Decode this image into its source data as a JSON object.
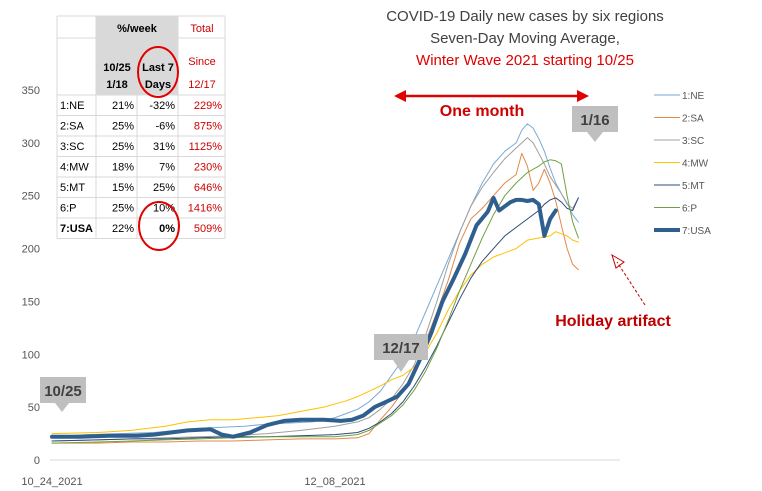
{
  "chart_data": {
    "type": "line",
    "title_lines": [
      "COVID-19 Daily new cases by six regions",
      "Seven-Day Moving Average,",
      "Winter Wave 2021 starting 10/25"
    ],
    "colors": {
      "title": "#404040",
      "title_accent": "#e00000",
      "red": "#d00000"
    },
    "x_tick_labels": [
      "10_24_2021",
      "12_08_2021"
    ],
    "y_ticks": [
      0,
      50,
      100,
      150,
      200,
      250,
      300,
      350
    ],
    "ylim": [
      0,
      350
    ],
    "xlim": [
      0,
      100
    ],
    "grid": false,
    "legend_position": "right",
    "series": [
      {
        "name": "1:NE",
        "color": "#7aaad4",
        "width": 1,
        "points": [
          [
            0,
            22
          ],
          [
            6,
            24
          ],
          [
            12,
            25
          ],
          [
            18,
            26
          ],
          [
            22,
            28
          ],
          [
            26,
            30
          ],
          [
            30,
            31
          ],
          [
            34,
            32
          ],
          [
            38,
            34
          ],
          [
            42,
            35
          ],
          [
            46,
            36
          ],
          [
            50,
            40
          ],
          [
            52,
            44
          ],
          [
            54,
            48
          ],
          [
            56,
            55
          ],
          [
            58,
            65
          ],
          [
            60,
            80
          ],
          [
            62,
            95
          ],
          [
            64,
            115
          ],
          [
            66,
            140
          ],
          [
            68,
            165
          ],
          [
            70,
            190
          ],
          [
            72,
            215
          ],
          [
            74,
            240
          ],
          [
            76,
            262
          ],
          [
            78,
            280
          ],
          [
            80,
            292
          ],
          [
            82,
            300
          ],
          [
            83,
            312
          ],
          [
            84,
            318
          ],
          [
            85,
            314
          ],
          [
            86,
            304
          ],
          [
            87,
            292
          ],
          [
            88,
            276
          ],
          [
            89,
            262
          ],
          [
            90,
            252
          ],
          [
            91,
            243
          ],
          [
            92,
            232
          ],
          [
            93,
            225
          ]
        ]
      },
      {
        "name": "2:SA",
        "color": "#e08a4a",
        "width": 1,
        "points": [
          [
            0,
            16
          ],
          [
            8,
            16
          ],
          [
            14,
            17
          ],
          [
            20,
            17
          ],
          [
            26,
            18
          ],
          [
            32,
            18
          ],
          [
            38,
            19
          ],
          [
            44,
            20
          ],
          [
            50,
            20
          ],
          [
            54,
            21
          ],
          [
            56,
            25
          ],
          [
            58,
            38
          ],
          [
            60,
            50
          ],
          [
            62,
            65
          ],
          [
            64,
            85
          ],
          [
            66,
            112
          ],
          [
            68,
            140
          ],
          [
            70,
            170
          ],
          [
            72,
            205
          ],
          [
            74,
            228
          ],
          [
            76,
            238
          ],
          [
            78,
            250
          ],
          [
            80,
            262
          ],
          [
            82,
            270
          ],
          [
            83,
            290
          ],
          [
            84,
            278
          ],
          [
            85,
            255
          ],
          [
            86,
            262
          ],
          [
            87,
            275
          ],
          [
            88,
            262
          ],
          [
            89,
            245
          ],
          [
            90,
            222
          ],
          [
            91,
            200
          ],
          [
            92,
            185
          ],
          [
            93,
            180
          ]
        ]
      },
      {
        "name": "3:SC",
        "color": "#a0a0a0",
        "width": 1,
        "points": [
          [
            0,
            18
          ],
          [
            8,
            19
          ],
          [
            14,
            20
          ],
          [
            20,
            21
          ],
          [
            26,
            22
          ],
          [
            32,
            23
          ],
          [
            38,
            25
          ],
          [
            44,
            28
          ],
          [
            50,
            32
          ],
          [
            54,
            36
          ],
          [
            56,
            40
          ],
          [
            58,
            48
          ],
          [
            60,
            58
          ],
          [
            62,
            72
          ],
          [
            64,
            90
          ],
          [
            66,
            118
          ],
          [
            68,
            150
          ],
          [
            70,
            185
          ],
          [
            72,
            215
          ],
          [
            74,
            240
          ],
          [
            76,
            258
          ],
          [
            78,
            272
          ],
          [
            80,
            285
          ],
          [
            82,
            295
          ],
          [
            83,
            300
          ],
          [
            84,
            305
          ],
          [
            85,
            300
          ],
          [
            86,
            290
          ],
          [
            87,
            280
          ],
          [
            88,
            268
          ],
          [
            89,
            260
          ],
          [
            90,
            252
          ],
          [
            91,
            242
          ],
          [
            92,
            238
          ],
          [
            93,
            248
          ]
        ]
      },
      {
        "name": "4:MW",
        "color": "#ffc000",
        "width": 1,
        "points": [
          [
            0,
            25
          ],
          [
            8,
            26
          ],
          [
            14,
            28
          ],
          [
            20,
            32
          ],
          [
            24,
            36
          ],
          [
            28,
            38
          ],
          [
            32,
            38
          ],
          [
            36,
            40
          ],
          [
            40,
            42
          ],
          [
            44,
            46
          ],
          [
            48,
            50
          ],
          [
            52,
            56
          ],
          [
            54,
            60
          ],
          [
            56,
            65
          ],
          [
            58,
            70
          ],
          [
            60,
            76
          ],
          [
            62,
            80
          ],
          [
            64,
            88
          ],
          [
            66,
            102
          ],
          [
            68,
            120
          ],
          [
            70,
            142
          ],
          [
            72,
            160
          ],
          [
            74,
            175
          ],
          [
            76,
            185
          ],
          [
            78,
            192
          ],
          [
            80,
            196
          ],
          [
            82,
            200
          ],
          [
            84,
            208
          ],
          [
            86,
            210
          ],
          [
            88,
            212
          ],
          [
            89,
            216
          ],
          [
            90,
            214
          ],
          [
            91,
            212
          ],
          [
            92,
            208
          ],
          [
            93,
            206
          ]
        ]
      },
      {
        "name": "5:MT",
        "color": "#2e4b7a",
        "width": 1,
        "points": [
          [
            0,
            18
          ],
          [
            8,
            19
          ],
          [
            14,
            20
          ],
          [
            20,
            20
          ],
          [
            26,
            21
          ],
          [
            32,
            22
          ],
          [
            38,
            22
          ],
          [
            44,
            23
          ],
          [
            50,
            24
          ],
          [
            54,
            26
          ],
          [
            56,
            30
          ],
          [
            58,
            36
          ],
          [
            60,
            44
          ],
          [
            62,
            55
          ],
          [
            64,
            70
          ],
          [
            66,
            88
          ],
          [
            68,
            108
          ],
          [
            70,
            130
          ],
          [
            72,
            152
          ],
          [
            74,
            172
          ],
          [
            76,
            188
          ],
          [
            78,
            200
          ],
          [
            80,
            212
          ],
          [
            82,
            220
          ],
          [
            84,
            228
          ],
          [
            86,
            236
          ],
          [
            87,
            242
          ],
          [
            88,
            246
          ],
          [
            89,
            248
          ],
          [
            90,
            244
          ],
          [
            91,
            238
          ],
          [
            92,
            236
          ],
          [
            93,
            248
          ]
        ]
      },
      {
        "name": "6:P",
        "color": "#70a040",
        "width": 1,
        "points": [
          [
            0,
            16
          ],
          [
            8,
            17
          ],
          [
            14,
            18
          ],
          [
            20,
            19
          ],
          [
            26,
            20
          ],
          [
            32,
            21
          ],
          [
            38,
            22
          ],
          [
            44,
            22
          ],
          [
            50,
            22
          ],
          [
            54,
            24
          ],
          [
            56,
            28
          ],
          [
            58,
            35
          ],
          [
            60,
            42
          ],
          [
            62,
            52
          ],
          [
            64,
            66
          ],
          [
            66,
            84
          ],
          [
            68,
            106
          ],
          [
            70,
            132
          ],
          [
            72,
            160
          ],
          [
            74,
            185
          ],
          [
            76,
            210
          ],
          [
            78,
            232
          ],
          [
            80,
            250
          ],
          [
            82,
            262
          ],
          [
            84,
            272
          ],
          [
            86,
            278
          ],
          [
            87,
            282
          ],
          [
            88,
            284
          ],
          [
            89,
            283
          ],
          [
            90,
            280
          ],
          [
            91,
            250
          ],
          [
            92,
            225
          ],
          [
            93,
            210
          ]
        ]
      },
      {
        "name": "7:USA",
        "color": "#2e5f8f",
        "width": 4,
        "points": [
          [
            0,
            22
          ],
          [
            5,
            22
          ],
          [
            10,
            23
          ],
          [
            15,
            23
          ],
          [
            18,
            24
          ],
          [
            21,
            26
          ],
          [
            24,
            28
          ],
          [
            28,
            29
          ],
          [
            30,
            24
          ],
          [
            32,
            22
          ],
          [
            35,
            26
          ],
          [
            38,
            33
          ],
          [
            41,
            37
          ],
          [
            44,
            38
          ],
          [
            48,
            38
          ],
          [
            51,
            37
          ],
          [
            53,
            38
          ],
          [
            55,
            42
          ],
          [
            57,
            50
          ],
          [
            59,
            55
          ],
          [
            61,
            60
          ],
          [
            63,
            72
          ],
          [
            65,
            95
          ],
          [
            67,
            120
          ],
          [
            69,
            150
          ],
          [
            71,
            172
          ],
          [
            73,
            195
          ],
          [
            75,
            222
          ],
          [
            77,
            235
          ],
          [
            78,
            248
          ],
          [
            79,
            236
          ],
          [
            80,
            240
          ],
          [
            81,
            244
          ],
          [
            82,
            246
          ],
          [
            83,
            246
          ],
          [
            84,
            245
          ],
          [
            85,
            246
          ],
          [
            86,
            242
          ],
          [
            87,
            212
          ],
          [
            88,
            228
          ],
          [
            89,
            236
          ]
        ]
      }
    ],
    "annotations": {
      "one_month": "One month",
      "date_1_16": "1/16",
      "date_12_17": "12/17",
      "date_10_25": "10/25",
      "holiday": "Holiday artifact"
    },
    "table": {
      "header_week": "%/week",
      "header_total": "Total",
      "header_col1": "10/25 - 1/18",
      "header_col1_a": "10/25",
      "header_col1_b": "1/18",
      "header_col2_a": "Last 7",
      "header_col2_b": "Days",
      "header_col3_a": "Since",
      "header_col3_b": "12/17",
      "rows": [
        {
          "region": "1:NE",
          "c1": "21%",
          "c2": "-32%",
          "c3": "229%"
        },
        {
          "region": "2:SA",
          "c1": "25%",
          "c2": "-6%",
          "c3": "875%"
        },
        {
          "region": "3:SC",
          "c1": "25%",
          "c2": "31%",
          "c3": "1125%"
        },
        {
          "region": "4:MW",
          "c1": "18%",
          "c2": "7%",
          "c3": "230%"
        },
        {
          "region": "5:MT",
          "c1": "15%",
          "c2": "25%",
          "c3": "646%"
        },
        {
          "region": "6:P",
          "c1": "25%",
          "c2": "10%",
          "c3": "1416%"
        },
        {
          "region": "7:USA",
          "c1": "22%",
          "c2": "0%",
          "c3": "509%"
        }
      ]
    }
  }
}
